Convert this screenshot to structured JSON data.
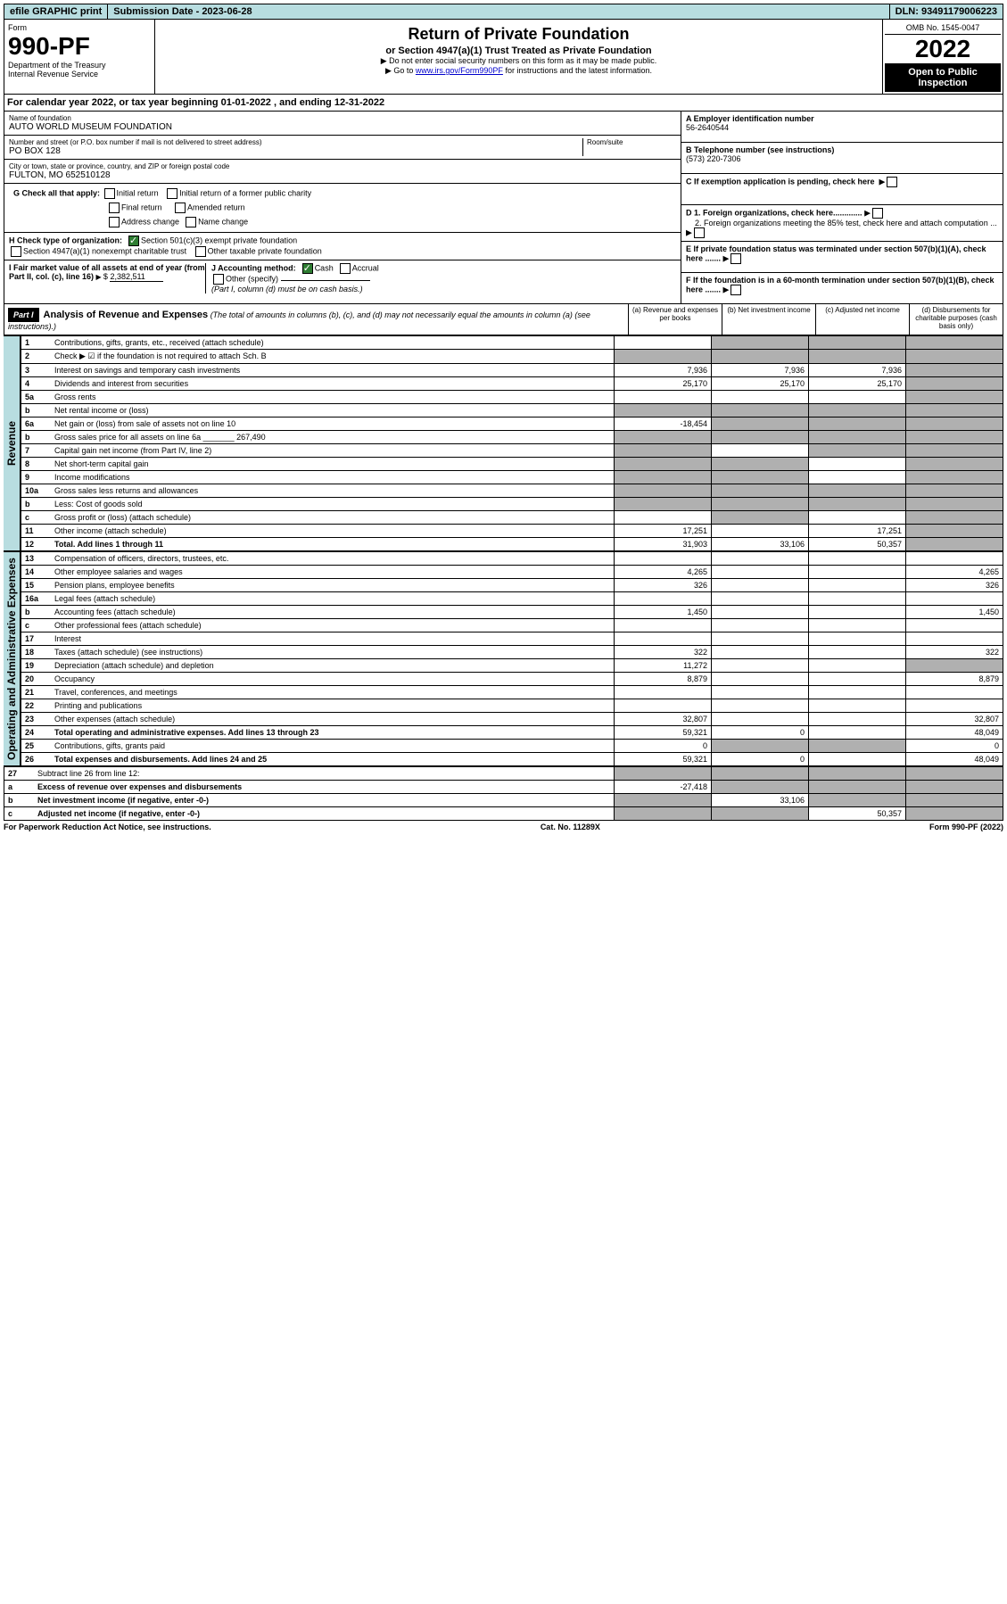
{
  "topbar": {
    "efile": "efile GRAPHIC print",
    "submission": "Submission Date - 2023-06-28",
    "dln": "DLN: 93491179006223"
  },
  "header": {
    "form_label": "Form",
    "form_number": "990-PF",
    "dept": "Department of the Treasury",
    "irs": "Internal Revenue Service",
    "title": "Return of Private Foundation",
    "subtitle": "or Section 4947(a)(1) Trust Treated as Private Foundation",
    "note1": "▶ Do not enter social security numbers on this form as it may be made public.",
    "note2_pre": "▶ Go to ",
    "note2_link": "www.irs.gov/Form990PF",
    "note2_post": " for instructions and the latest information.",
    "omb": "OMB No. 1545-0047",
    "year": "2022",
    "open": "Open to Public Inspection"
  },
  "calyear": {
    "text_pre": "For calendar year 2022, or tax year beginning ",
    "begin": "01-01-2022",
    "text_mid": " , and ending ",
    "end": "12-31-2022"
  },
  "info": {
    "name_label": "Name of foundation",
    "name": "AUTO WORLD MUSEUM FOUNDATION",
    "addr_label": "Number and street (or P.O. box number if mail is not delivered to street address)",
    "addr": "PO BOX 128",
    "room_label": "Room/suite",
    "city_label": "City or town, state or province, country, and ZIP or foreign postal code",
    "city": "FULTON, MO  652510128",
    "a_label": "A Employer identification number",
    "a_val": "56-2640544",
    "b_label": "B Telephone number (see instructions)",
    "b_val": "(573) 220-7306",
    "c_label": "C If exemption application is pending, check here",
    "d1": "D 1. Foreign organizations, check here.............",
    "d2": "2. Foreign organizations meeting the 85% test, check here and attach computation ...",
    "e_label": "E  If private foundation status was terminated under section 507(b)(1)(A), check here .......",
    "f_label": "F  If the foundation is in a 60-month termination under section 507(b)(1)(B), check here .......",
    "g_label": "G Check all that apply:",
    "g_opts": [
      "Initial return",
      "Initial return of a former public charity",
      "Final return",
      "Amended return",
      "Address change",
      "Name change"
    ],
    "h_label": "H Check type of organization:",
    "h_opt1": "Section 501(c)(3) exempt private foundation",
    "h_opt2": "Section 4947(a)(1) nonexempt charitable trust",
    "h_opt3": "Other taxable private foundation",
    "i_label": "I Fair market value of all assets at end of year (from Part II, col. (c), line 16)",
    "i_val": "2,382,511",
    "j_label": "J Accounting method:",
    "j_cash": "Cash",
    "j_accrual": "Accrual",
    "j_other": "Other (specify)",
    "j_note": "(Part I, column (d) must be on cash basis.)"
  },
  "part1": {
    "label": "Part I",
    "title": "Analysis of Revenue and Expenses",
    "note": "(The total of amounts in columns (b), (c), and (d) may not necessarily equal the amounts in column (a) (see instructions).)",
    "col_a": "(a) Revenue and expenses per books",
    "col_b": "(b) Net investment income",
    "col_c": "(c) Adjusted net income",
    "col_d": "(d) Disbursements for charitable purposes (cash basis only)"
  },
  "sides": {
    "revenue": "Revenue",
    "expenses": "Operating and Administrative Expenses"
  },
  "rows": [
    {
      "n": "1",
      "desc": "Contributions, gifts, grants, etc., received (attach schedule)",
      "a": "",
      "b": "_s",
      "c": "_s",
      "d": "_s"
    },
    {
      "n": "2",
      "desc": "Check ▶ ☑ if the foundation is not required to attach Sch. B",
      "a": "_s",
      "b": "_s",
      "c": "_s",
      "d": "_s"
    },
    {
      "n": "3",
      "desc": "Interest on savings and temporary cash investments",
      "a": "7,936",
      "b": "7,936",
      "c": "7,936",
      "d": "_s"
    },
    {
      "n": "4",
      "desc": "Dividends and interest from securities",
      "a": "25,170",
      "b": "25,170",
      "c": "25,170",
      "d": "_s"
    },
    {
      "n": "5a",
      "desc": "Gross rents",
      "a": "",
      "b": "",
      "c": "",
      "d": "_s"
    },
    {
      "n": "b",
      "desc": "Net rental income or (loss)",
      "a": "_s",
      "b": "_s",
      "c": "_s",
      "d": "_s"
    },
    {
      "n": "6a",
      "desc": "Net gain or (loss) from sale of assets not on line 10",
      "a": "-18,454",
      "b": "_s",
      "c": "_s",
      "d": "_s"
    },
    {
      "n": "b",
      "desc": "Gross sales price for all assets on line 6a _______ 267,490",
      "a": "_s",
      "b": "_s",
      "c": "_s",
      "d": "_s"
    },
    {
      "n": "7",
      "desc": "Capital gain net income (from Part IV, line 2)",
      "a": "_s",
      "b": "",
      "c": "_s",
      "d": "_s"
    },
    {
      "n": "8",
      "desc": "Net short-term capital gain",
      "a": "_s",
      "b": "_s",
      "c": "",
      "d": "_s"
    },
    {
      "n": "9",
      "desc": "Income modifications",
      "a": "_s",
      "b": "_s",
      "c": "",
      "d": "_s"
    },
    {
      "n": "10a",
      "desc": "Gross sales less returns and allowances",
      "a": "_s",
      "b": "_s",
      "c": "_s",
      "d": "_s"
    },
    {
      "n": "b",
      "desc": "Less: Cost of goods sold",
      "a": "_s",
      "b": "_s",
      "c": "_s",
      "d": "_s"
    },
    {
      "n": "c",
      "desc": "Gross profit or (loss) (attach schedule)",
      "a": "",
      "b": "_s",
      "c": "",
      "d": "_s"
    },
    {
      "n": "11",
      "desc": "Other income (attach schedule)",
      "a": "17,251",
      "b": "",
      "c": "17,251",
      "d": "_s"
    },
    {
      "n": "12",
      "desc": "Total. Add lines 1 through 11",
      "a": "31,903",
      "b": "33,106",
      "c": "50,357",
      "d": "_s",
      "bold": true
    }
  ],
  "exp_rows": [
    {
      "n": "13",
      "desc": "Compensation of officers, directors, trustees, etc.",
      "a": "",
      "b": "",
      "c": "",
      "d": ""
    },
    {
      "n": "14",
      "desc": "Other employee salaries and wages",
      "a": "4,265",
      "b": "",
      "c": "",
      "d": "4,265"
    },
    {
      "n": "15",
      "desc": "Pension plans, employee benefits",
      "a": "326",
      "b": "",
      "c": "",
      "d": "326"
    },
    {
      "n": "16a",
      "desc": "Legal fees (attach schedule)",
      "a": "",
      "b": "",
      "c": "",
      "d": ""
    },
    {
      "n": "b",
      "desc": "Accounting fees (attach schedule)",
      "a": "1,450",
      "b": "",
      "c": "",
      "d": "1,450"
    },
    {
      "n": "c",
      "desc": "Other professional fees (attach schedule)",
      "a": "",
      "b": "",
      "c": "",
      "d": ""
    },
    {
      "n": "17",
      "desc": "Interest",
      "a": "",
      "b": "",
      "c": "",
      "d": ""
    },
    {
      "n": "18",
      "desc": "Taxes (attach schedule) (see instructions)",
      "a": "322",
      "b": "",
      "c": "",
      "d": "322"
    },
    {
      "n": "19",
      "desc": "Depreciation (attach schedule) and depletion",
      "a": "11,272",
      "b": "",
      "c": "",
      "d": "_s"
    },
    {
      "n": "20",
      "desc": "Occupancy",
      "a": "8,879",
      "b": "",
      "c": "",
      "d": "8,879"
    },
    {
      "n": "21",
      "desc": "Travel, conferences, and meetings",
      "a": "",
      "b": "",
      "c": "",
      "d": ""
    },
    {
      "n": "22",
      "desc": "Printing and publications",
      "a": "",
      "b": "",
      "c": "",
      "d": ""
    },
    {
      "n": "23",
      "desc": "Other expenses (attach schedule)",
      "a": "32,807",
      "b": "",
      "c": "",
      "d": "32,807"
    },
    {
      "n": "24",
      "desc": "Total operating and administrative expenses. Add lines 13 through 23",
      "a": "59,321",
      "b": "0",
      "c": "",
      "d": "48,049",
      "bold": true
    },
    {
      "n": "25",
      "desc": "Contributions, gifts, grants paid",
      "a": "0",
      "b": "_s",
      "c": "_s",
      "d": "0"
    },
    {
      "n": "26",
      "desc": "Total expenses and disbursements. Add lines 24 and 25",
      "a": "59,321",
      "b": "0",
      "c": "",
      "d": "48,049",
      "bold": true
    }
  ],
  "bottom_rows": [
    {
      "n": "27",
      "desc": "Subtract line 26 from line 12:",
      "a": "_s",
      "b": "_s",
      "c": "_s",
      "d": "_s"
    },
    {
      "n": "a",
      "desc": "Excess of revenue over expenses and disbursements",
      "a": "-27,418",
      "b": "_s",
      "c": "_s",
      "d": "_s",
      "bold": true
    },
    {
      "n": "b",
      "desc": "Net investment income (if negative, enter -0-)",
      "a": "_s",
      "b": "33,106",
      "c": "_s",
      "d": "_s",
      "bold": true
    },
    {
      "n": "c",
      "desc": "Adjusted net income (if negative, enter -0-)",
      "a": "_s",
      "b": "_s",
      "c": "50,357",
      "d": "_s",
      "bold": true
    }
  ],
  "footer": {
    "left": "For Paperwork Reduction Act Notice, see instructions.",
    "mid": "Cat. No. 11289X",
    "right": "Form 990-PF (2022)"
  }
}
